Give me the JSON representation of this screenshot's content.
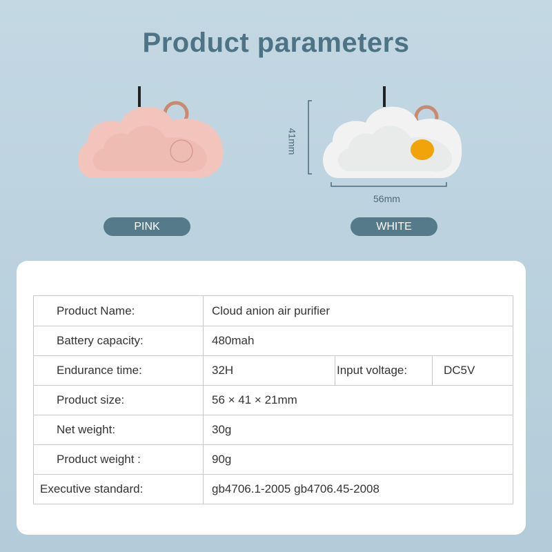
{
  "title": "Product parameters",
  "colors": {
    "pink": "#f2c4bb",
    "white": "#f1f2f1",
    "button_orange": "#f0a40a",
    "pill": "#557b8a",
    "title": "#4e7385"
  },
  "variants": [
    {
      "label": "PINK"
    },
    {
      "label": "WHITE"
    }
  ],
  "dimensions": {
    "height": "41mm",
    "width": "56mm"
  },
  "specs": {
    "product_name": {
      "label": "Product Name:",
      "value": "Cloud anion air purifier"
    },
    "battery": {
      "label": "Battery capacity:",
      "value": "480mah"
    },
    "endurance": {
      "label": "Endurance time:",
      "value": "32H"
    },
    "voltage": {
      "label": "Input voltage:",
      "value": "DC5V"
    },
    "size": {
      "label": "Product size:",
      "value": "56 × 41 × 21mm"
    },
    "net_weight": {
      "label": "Net weight:",
      "value": "30g"
    },
    "product_weight": {
      "label": "Product weight :",
      "value": "90g"
    },
    "standard": {
      "label": "Executive standard:",
      "value": "gb4706.1-2005 gb4706.45-2008"
    }
  }
}
